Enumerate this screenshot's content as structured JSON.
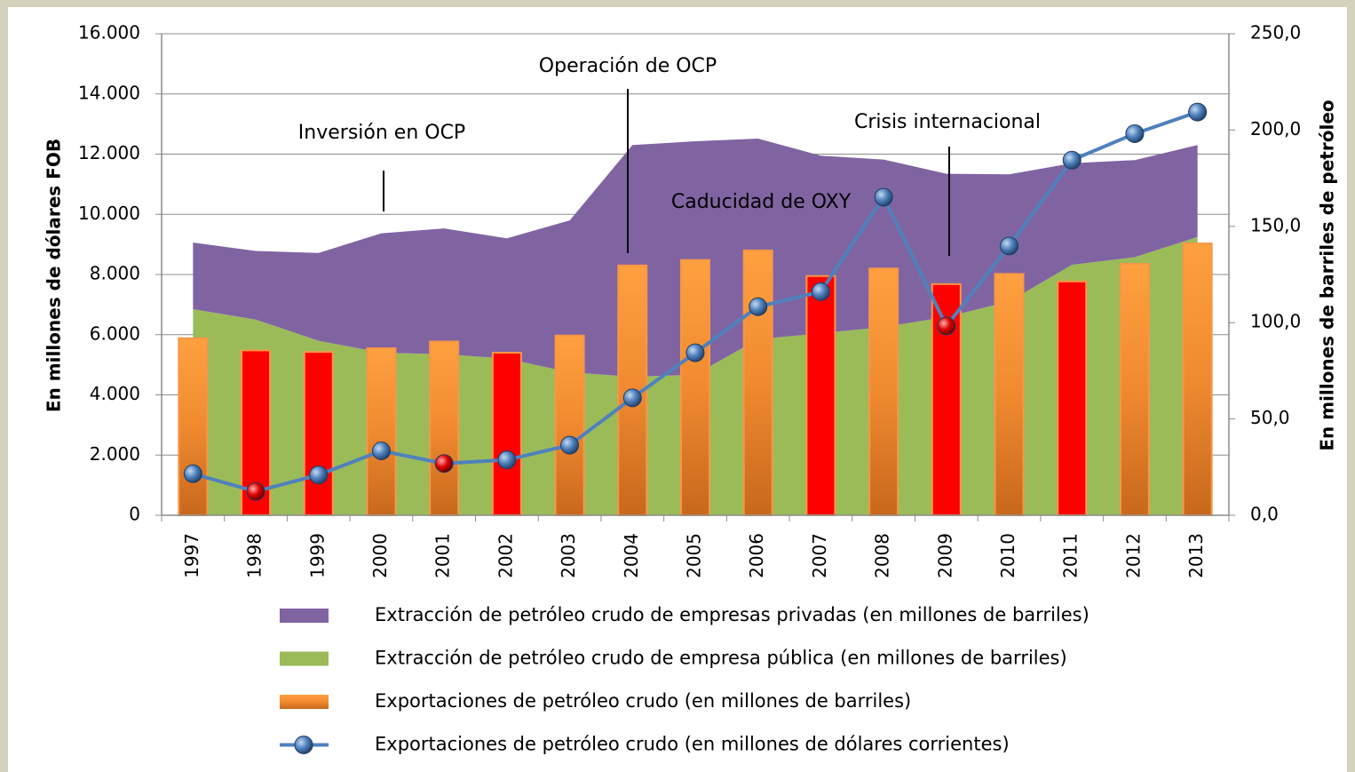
{
  "chart_data": {
    "type": "combo",
    "y_label": "En millones de dólares FOB",
    "y2_label": "En millones de barriles de petróleo",
    "categories": [
      "1997",
      "1998",
      "1999",
      "2000",
      "2001",
      "2002",
      "2003",
      "2004",
      "2005",
      "2006",
      "2007",
      "2008",
      "2009",
      "2010",
      "2011",
      "2012",
      "2013"
    ],
    "ylim": [
      0,
      16000
    ],
    "yticks": [
      0,
      {
        "value": 2000,
        "label": "2.000"
      },
      {
        "value": 4000,
        "label": "4.000"
      },
      {
        "value": 6000,
        "label": "6.000"
      },
      {
        "value": 8000,
        "label": "8.000"
      },
      {
        "value": 10000,
        "label": "10.000"
      },
      {
        "value": 12000,
        "label": "12.000"
      },
      {
        "value": 14000,
        "label": "14.000"
      },
      {
        "value": 16000,
        "label": "16.000"
      }
    ],
    "y2lim": [
      0,
      250
    ],
    "y2ticks": [
      {
        "value": 0,
        "label": "0,0"
      },
      {
        "value": 50,
        "label": "50,0"
      },
      {
        "value": 100,
        "label": "100,0"
      },
      {
        "value": 150,
        "label": "150,0"
      },
      {
        "value": 200,
        "label": "200,0"
      },
      {
        "value": 250,
        "label": "250,0"
      }
    ],
    "series": [
      {
        "name": "Extracción de petróleo crudo de empresas privadas (en millones de barriles)",
        "type": "area",
        "axis": "y2",
        "stack": "extraction",
        "color": "#8064a2",
        "values": [
          34.6,
          35.6,
          45.6,
          62.0,
          65.3,
          62.5,
          78.9,
          120.3,
          121.2,
          104.2,
          92.2,
          87.0,
          74.3,
          66.0,
          52.8,
          50.4,
          47.7
        ]
      },
      {
        "name": "Extracción de petróleo crudo de empresa pública (en millones de barriles)",
        "type": "area",
        "axis": "y2",
        "stack": "extraction",
        "color": "#9bbb59",
        "values": [
          107.0,
          101.6,
          90.6,
          84.4,
          83.6,
          81.3,
          74.2,
          71.9,
          73.0,
          91.4,
          94.5,
          97.7,
          103.0,
          111.0,
          130.0,
          134.0,
          144.5
        ]
      },
      {
        "name": "Exportaciones de petróleo crudo (en millones de barriles)",
        "type": "bar",
        "axis": "y2",
        "color": "#f79646",
        "bar_colors": [
          "#f79646",
          "#ff0000",
          "#ff0000",
          "#f79646",
          "#f79646",
          "#ff0000",
          "#f79646",
          "#f79646",
          "#f79646",
          "#f79646",
          "#ff0000",
          "#f79646",
          "#ff0000",
          "#f79646",
          "#ff0000",
          "#f79646",
          "#f79646"
        ],
        "values": [
          91.9,
          85.6,
          84.8,
          86.7,
          90.2,
          84.4,
          93.3,
          129.7,
          132.5,
          137.5,
          124.2,
          128.1,
          120.0,
          125.3,
          121.4,
          130.5,
          141.1
        ]
      },
      {
        "name": "Exportaciones de petróleo crudo (en millones de dólares corrientes)",
        "type": "line",
        "axis": "y",
        "color": "#4f81bd",
        "marker_colors": [
          "#4f81bd",
          "#ff0000",
          "#4f81bd",
          "#4f81bd",
          "#ff0000",
          "#4f81bd",
          "#4f81bd",
          "#4f81bd",
          "#4f81bd",
          "#4f81bd",
          "#4f81bd",
          "#4f81bd",
          "#ff0000",
          "#4f81bd",
          "#4f81bd",
          "#4f81bd",
          "#4f81bd"
        ],
        "values": [
          1380,
          790,
          1340,
          2140,
          1720,
          1840,
          2330,
          3900,
          5400,
          6930,
          7430,
          10570,
          6290,
          8950,
          11800,
          12680,
          13400
        ]
      }
    ],
    "annotations": [
      "Inversión en OCP",
      "Operación de OCP",
      "Caducidad de OXY",
      "Crisis internacional"
    ],
    "grid": true
  }
}
